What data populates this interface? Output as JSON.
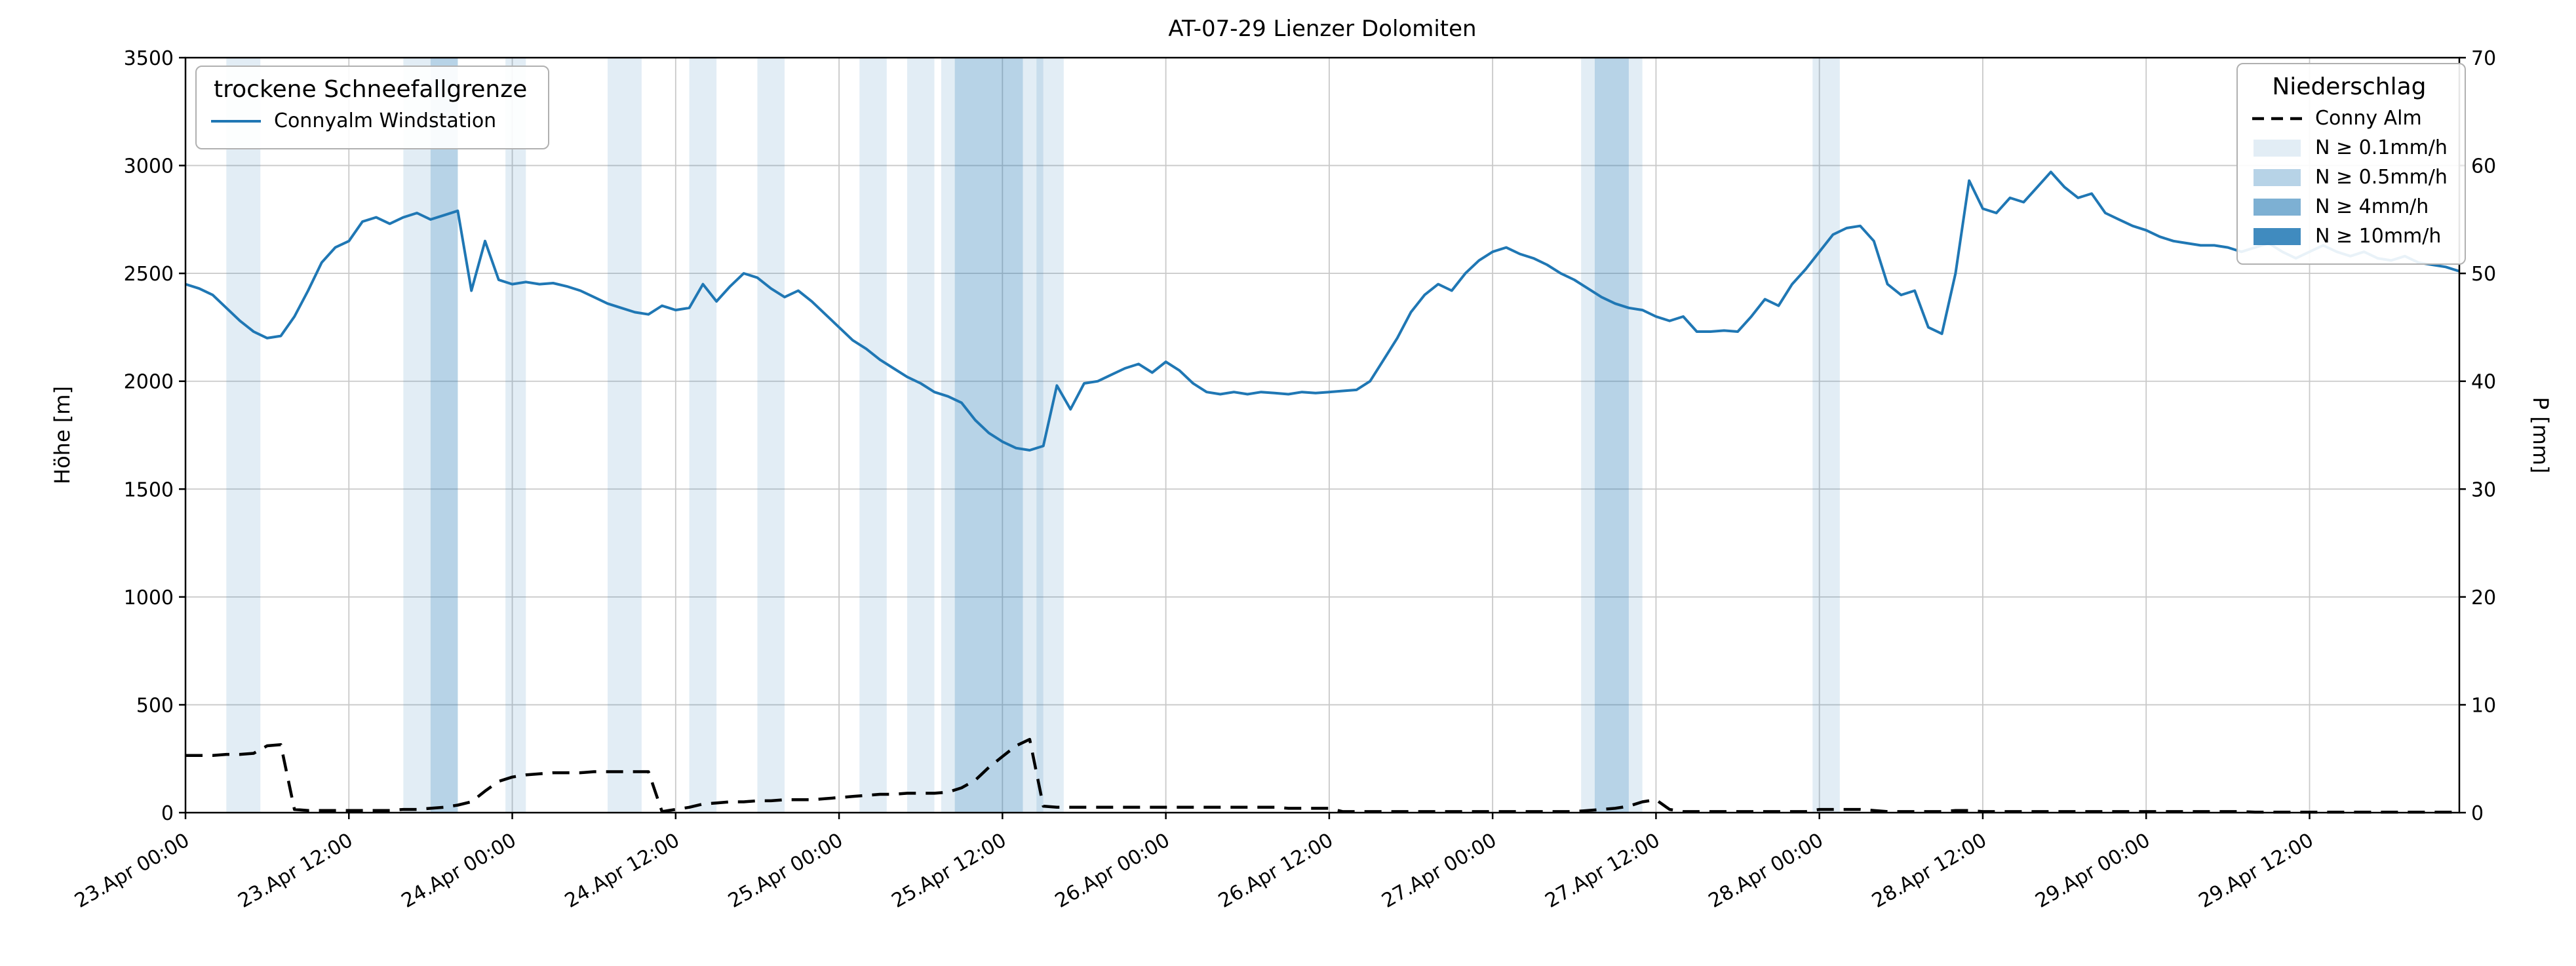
{
  "chart_data": {
    "type": "line",
    "title": "AT-07-29 Lienzer Dolomiten",
    "grid": true,
    "x_axis": {
      "unit": "hours since 23.Apr 00:00",
      "min": 0,
      "max": 167,
      "ticks": [
        {
          "h": 0,
          "label": "23.Apr 00:00"
        },
        {
          "h": 12,
          "label": "23.Apr 12:00"
        },
        {
          "h": 24,
          "label": "24.Apr 00:00"
        },
        {
          "h": 36,
          "label": "24.Apr 12:00"
        },
        {
          "h": 48,
          "label": "25.Apr 00:00"
        },
        {
          "h": 60,
          "label": "25.Apr 12:00"
        },
        {
          "h": 72,
          "label": "26.Apr 00:00"
        },
        {
          "h": 84,
          "label": "26.Apr 12:00"
        },
        {
          "h": 96,
          "label": "27.Apr 00:00"
        },
        {
          "h": 108,
          "label": "27.Apr 12:00"
        },
        {
          "h": 120,
          "label": "28.Apr 00:00"
        },
        {
          "h": 132,
          "label": "28.Apr 12:00"
        },
        {
          "h": 144,
          "label": "29.Apr 00:00"
        },
        {
          "h": 156,
          "label": "29.Apr 12:00"
        }
      ]
    },
    "y_left": {
      "label": "Höhe [m]",
      "min": 0,
      "max": 3500,
      "ticks": [
        0,
        500,
        1000,
        1500,
        2000,
        2500,
        3000,
        3500
      ]
    },
    "y_right": {
      "label": "P [mm]",
      "min": 0,
      "max": 70,
      "ticks": [
        0,
        10,
        20,
        30,
        40,
        50,
        60,
        70
      ]
    },
    "series": [
      {
        "name": "Connyalm Windstation",
        "axis": "left",
        "color": "#1f77b4",
        "width": 4,
        "x_start": 0,
        "x_step": 1,
        "values": [
          2450,
          2430,
          2400,
          2340,
          2280,
          2230,
          2200,
          2210,
          2300,
          2420,
          2550,
          2620,
          2650,
          2740,
          2760,
          2730,
          2760,
          2780,
          2750,
          2770,
          2790,
          2420,
          2650,
          2470,
          2450,
          2460,
          2450,
          2455,
          2440,
          2420,
          2390,
          2360,
          2340,
          2320,
          2310,
          2350,
          2330,
          2340,
          2450,
          2370,
          2440,
          2500,
          2480,
          2430,
          2390,
          2420,
          2370,
          2310,
          2250,
          2190,
          2150,
          2100,
          2060,
          2020,
          1990,
          1950,
          1930,
          1900,
          1820,
          1760,
          1720,
          1690,
          1680,
          1700,
          1980,
          1870,
          1990,
          2000,
          2030,
          2060,
          2080,
          2040,
          2090,
          2050,
          1990,
          1950,
          1940,
          1950,
          1940,
          1950,
          1945,
          1940,
          1950,
          1945,
          1950,
          1955,
          1960,
          2000,
          2100,
          2200,
          2320,
          2400,
          2450,
          2420,
          2500,
          2560,
          2600,
          2620,
          2590,
          2570,
          2540,
          2500,
          2470,
          2430,
          2390,
          2360,
          2340,
          2330,
          2300,
          2280,
          2300,
          2230,
          2230,
          2235,
          2230,
          2300,
          2380,
          2350,
          2450,
          2520,
          2600,
          2680,
          2710,
          2720,
          2650,
          2450,
          2400,
          2420,
          2250,
          2220,
          2500,
          2930,
          2800,
          2780,
          2850,
          2830,
          2900,
          2970,
          2900,
          2850,
          2870,
          2780,
          2750,
          2720,
          2700,
          2670,
          2650,
          2640,
          2630,
          2630,
          2620,
          2600,
          2620,
          2640,
          2600,
          2570,
          2600,
          2630,
          2600,
          2580,
          2600,
          2570,
          2560,
          2580,
          2550,
          2540,
          2530,
          2510
        ]
      },
      {
        "name": "Conny Alm",
        "axis": "right",
        "color": "#000000",
        "width": 4.5,
        "dash": "26 15",
        "x_start": 0,
        "x_step": 1,
        "values": [
          5.3,
          5.3,
          5.3,
          5.4,
          5.4,
          5.5,
          6.2,
          6.3,
          0.3,
          0.2,
          0.2,
          0.2,
          0.2,
          0.2,
          0.2,
          0.2,
          0.3,
          0.3,
          0.4,
          0.5,
          0.7,
          1.0,
          2.0,
          2.9,
          3.3,
          3.5,
          3.6,
          3.7,
          3.7,
          3.7,
          3.8,
          3.8,
          3.8,
          3.8,
          3.8,
          0.1,
          0.3,
          0.5,
          0.8,
          0.9,
          1.0,
          1.0,
          1.1,
          1.1,
          1.2,
          1.2,
          1.2,
          1.3,
          1.4,
          1.5,
          1.6,
          1.7,
          1.7,
          1.8,
          1.8,
          1.8,
          1.9,
          2.3,
          3.0,
          4.2,
          5.2,
          6.2,
          6.8,
          0.6,
          0.5,
          0.5,
          0.5,
          0.5,
          0.5,
          0.5,
          0.5,
          0.5,
          0.5,
          0.5,
          0.5,
          0.5,
          0.5,
          0.5,
          0.5,
          0.5,
          0.5,
          0.4,
          0.4,
          0.4,
          0.4,
          0.1,
          0.1,
          0.1,
          0.1,
          0.1,
          0.1,
          0.1,
          0.1,
          0.1,
          0.1,
          0.1,
          0.1,
          0.1,
          0.1,
          0.1,
          0.1,
          0.1,
          0.1,
          0.2,
          0.3,
          0.4,
          0.6,
          1.0,
          1.2,
          0.3,
          0.1,
          0.1,
          0.1,
          0.1,
          0.1,
          0.1,
          0.1,
          0.1,
          0.1,
          0.1,
          0.3,
          0.3,
          0.3,
          0.3,
          0.2,
          0.1,
          0.1,
          0.1,
          0.1,
          0.1,
          0.2,
          0.2,
          0.1,
          0.1,
          0.1,
          0.1,
          0.1,
          0.1,
          0.1,
          0.1,
          0.1,
          0.1,
          0.1,
          0.1,
          0.1,
          0.1,
          0.1,
          0.1,
          0.1,
          0.1,
          0.1,
          0.1,
          0.05,
          0.05,
          0.05,
          0.05,
          0.05,
          0.05,
          0.05,
          0.05,
          0.05,
          0.05,
          0.05,
          0.05,
          0.05,
          0.05,
          0.05,
          0.05
        ]
      }
    ],
    "precip_bands": {
      "levels": {
        "0.1": "rgba(31,119,180,0.13)",
        "0.5": "rgba(31,119,180,0.32)",
        "4": "rgba(31,119,180,0.58)",
        "10": "rgba(31,119,180,0.85)"
      },
      "spans": [
        {
          "from": 3,
          "to": 5.5,
          "level": "0.1"
        },
        {
          "from": 16,
          "to": 18,
          "level": "0.1"
        },
        {
          "from": 18,
          "to": 20,
          "level": "0.5"
        },
        {
          "from": 23.5,
          "to": 25,
          "level": "0.1"
        },
        {
          "from": 31,
          "to": 33.5,
          "level": "0.1"
        },
        {
          "from": 37,
          "to": 39,
          "level": "0.1"
        },
        {
          "from": 42,
          "to": 44,
          "level": "0.1"
        },
        {
          "from": 49.5,
          "to": 51.5,
          "level": "0.1"
        },
        {
          "from": 53,
          "to": 55,
          "level": "0.1"
        },
        {
          "from": 55.5,
          "to": 56.5,
          "level": "0.1"
        },
        {
          "from": 56.5,
          "to": 61.5,
          "level": "0.5"
        },
        {
          "from": 61.5,
          "to": 63,
          "level": "0.1"
        },
        {
          "from": 62.5,
          "to": 64.5,
          "level": "0.1"
        },
        {
          "from": 102.5,
          "to": 103.5,
          "level": "0.1"
        },
        {
          "from": 103.5,
          "to": 106,
          "level": "0.5"
        },
        {
          "from": 106,
          "to": 107,
          "level": "0.1"
        },
        {
          "from": 119.5,
          "to": 121.5,
          "level": "0.1"
        }
      ]
    },
    "legend_left": {
      "title": "trockene Schneefallgrenze",
      "entries": [
        {
          "label": "Connyalm Windstation",
          "swatch": "line",
          "color": "#1f77b4"
        }
      ]
    },
    "legend_right": {
      "title": "Niederschlag",
      "entries": [
        {
          "label": "Conny Alm",
          "swatch": "dash",
          "color": "#000000"
        },
        {
          "label": "N ≥ 0.1mm/h",
          "swatch": "patch",
          "color": "rgba(31,119,180,0.13)"
        },
        {
          "label": "N ≥ 0.5mm/h",
          "swatch": "patch",
          "color": "rgba(31,119,180,0.32)"
        },
        {
          "label": "N ≥ 4mm/h",
          "swatch": "patch",
          "color": "rgba(31,119,180,0.58)"
        },
        {
          "label": "N ≥ 10mm/h",
          "swatch": "patch",
          "color": "rgba(31,119,180,0.85)"
        }
      ]
    }
  }
}
